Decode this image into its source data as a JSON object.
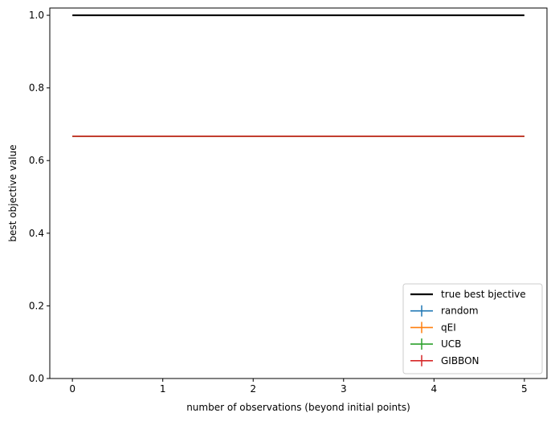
{
  "chart_data": {
    "type": "line",
    "title": "",
    "xlabel": "number of observations (beyond initial points)",
    "ylabel": "best objective value",
    "xlim": [
      -0.25,
      5.25
    ],
    "ylim": [
      0.0,
      1.02
    ],
    "xticks": [
      0,
      1,
      2,
      3,
      4,
      5
    ],
    "xtick_labels": [
      "0",
      "1",
      "2",
      "3",
      "4",
      "5"
    ],
    "yticks": [
      0.0,
      0.2,
      0.4,
      0.6,
      0.8,
      1.0
    ],
    "ytick_labels": [
      "0.0",
      "0.2",
      "0.4",
      "0.6",
      "0.8",
      "1.0"
    ],
    "grid": false,
    "legend_position": "lower-right",
    "x": [
      0,
      1,
      2,
      3,
      4,
      5
    ],
    "series": [
      {
        "name": "true best bjective",
        "kind": "line",
        "color": "#000000",
        "values": [
          1.0,
          1.0,
          1.0,
          1.0,
          1.0,
          1.0
        ]
      },
      {
        "name": "random",
        "kind": "errorbar",
        "color": "#1f77b4",
        "values": [
          0.667,
          0.667,
          0.667,
          0.667,
          0.667,
          0.667
        ],
        "errors": [
          0,
          0,
          0,
          0,
          0,
          0
        ]
      },
      {
        "name": "qEI",
        "kind": "errorbar",
        "color": "#ff7f0e",
        "values": [
          0.667,
          0.667,
          0.667,
          0.667,
          0.667,
          0.667
        ],
        "errors": [
          0,
          0,
          0,
          0,
          0,
          0
        ]
      },
      {
        "name": "UCB",
        "kind": "errorbar",
        "color": "#2ca02c",
        "values": [
          0.667,
          0.667,
          0.667,
          0.667,
          0.667,
          0.667
        ],
        "errors": [
          0,
          0,
          0,
          0,
          0,
          0
        ]
      },
      {
        "name": "GIBBON",
        "kind": "errorbar",
        "color": "#d62728",
        "values": [
          0.667,
          0.667,
          0.667,
          0.667,
          0.667,
          0.667
        ],
        "errors": [
          0,
          0,
          0,
          0,
          0,
          0
        ]
      }
    ]
  }
}
